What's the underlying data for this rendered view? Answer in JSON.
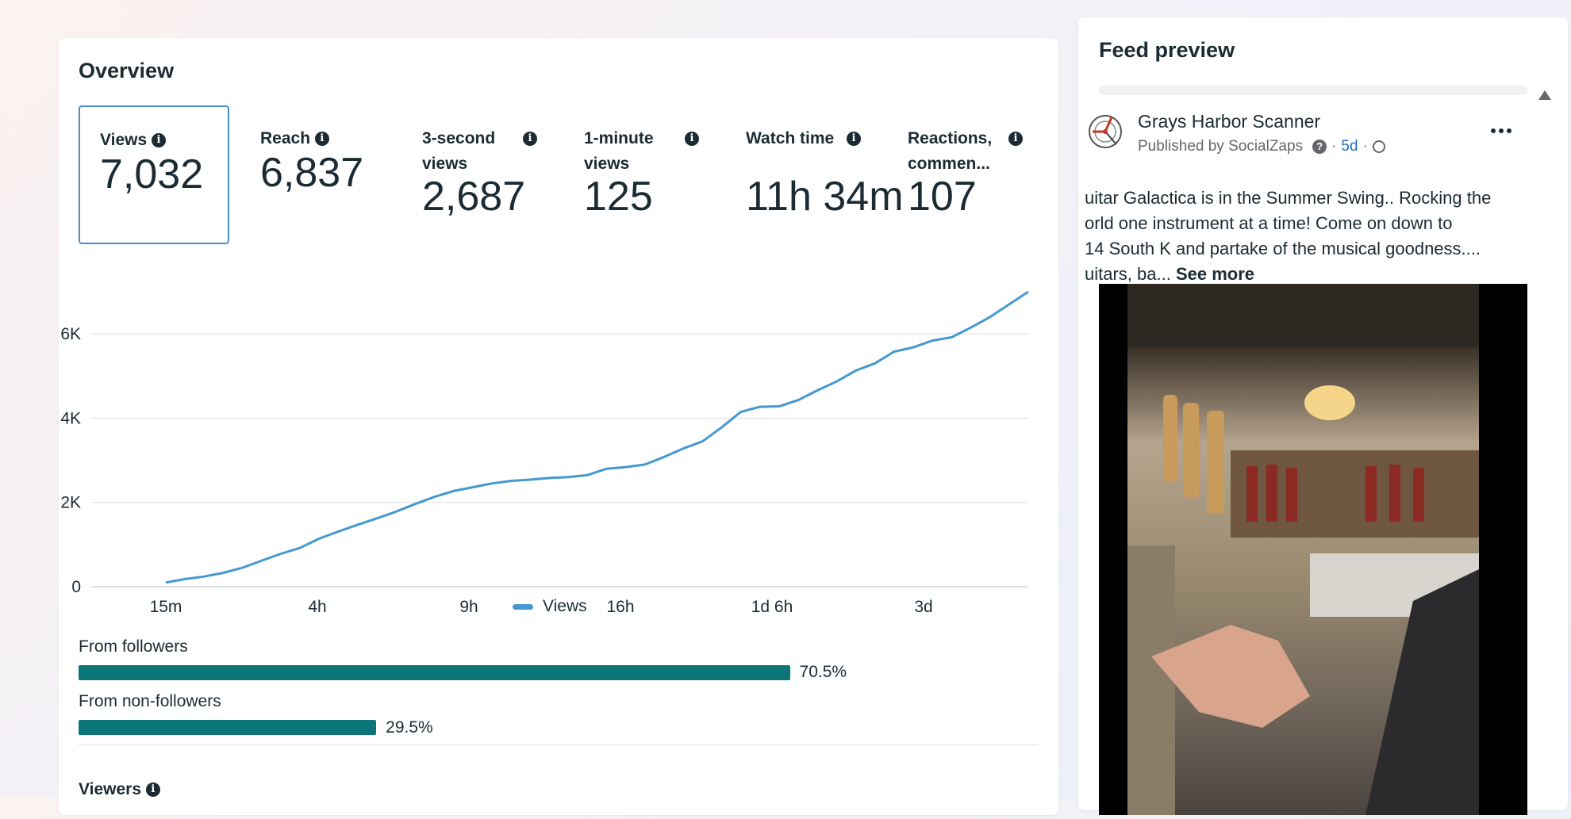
{
  "overview": {
    "title": "Overview",
    "metrics": [
      {
        "label": "Views",
        "value": "7,032",
        "selected": true
      },
      {
        "label": "Reach",
        "value": "6,837"
      },
      {
        "label": "3-second views",
        "value": "2,687"
      },
      {
        "label": "1-minute views",
        "value": "125"
      },
      {
        "label": "Watch time",
        "value": "11h 34m"
      },
      {
        "label": "Reactions, commen...",
        "value": "107"
      }
    ],
    "legend": "Views",
    "from_followers": {
      "label": "From followers",
      "pct_text": "70.5%",
      "pct": 70.5
    },
    "from_non_followers": {
      "label": "From non-followers",
      "pct_text": "29.5%",
      "pct": 29.5
    },
    "viewers_label": "Viewers",
    "colors": {
      "line": "#4599d0",
      "bar": "#0b7578",
      "selected_border": "#4a8ec9"
    }
  },
  "chart_data": {
    "type": "line",
    "x_ticks": [
      "15m",
      "4h",
      "9h",
      "16h",
      "1d 6h",
      "3d"
    ],
    "y_ticks": [
      "0",
      "2K",
      "4K",
      "6K"
    ],
    "ylim": [
      0,
      7000
    ],
    "grid": true,
    "legend_position": "bottom",
    "series": [
      {
        "name": "Views",
        "values": [
          100,
          180,
          240,
          330,
          450,
          620,
          780,
          920,
          1140,
          1310,
          1470,
          1620,
          1780,
          1960,
          2130,
          2270,
          2360,
          2450,
          2510,
          2540,
          2580,
          2600,
          2650,
          2800,
          2840,
          2900,
          3080,
          3280,
          3450,
          3780,
          4150,
          4270,
          4280,
          4430,
          4660,
          4870,
          5130,
          5300,
          5580,
          5680,
          5840,
          5920,
          6150,
          6400,
          6700,
          7000
        ]
      }
    ]
  },
  "feed": {
    "title": "Feed preview",
    "page_name": "Grays Harbor Scanner",
    "published_by": "Published by SocialZaps",
    "age": "5d",
    "post_lines": [
      "uitar Galactica is in the Summer Swing.. Rocking the",
      "orld one instrument at a time!  Come on down to",
      "14 South K and partake of the musical goodness....",
      "uitars, ba..."
    ],
    "see_more": "See more",
    "icons": [
      "info-icon",
      "question-icon",
      "globe-icon",
      "more-icon",
      "scroll-up-icon"
    ]
  }
}
